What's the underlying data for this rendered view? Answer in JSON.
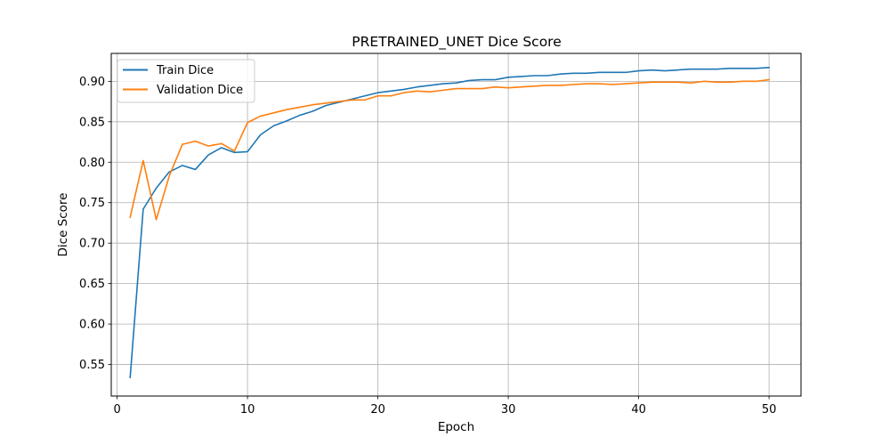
{
  "chart_data": {
    "type": "line",
    "title": "PRETRAINED_UNET Dice Score",
    "xlabel": "Epoch",
    "ylabel": "Dice Score",
    "xlim": [
      -0.45,
      52.45
    ],
    "ylim": [
      0.511,
      0.9345
    ],
    "xticks": [
      0,
      10,
      20,
      30,
      40,
      50
    ],
    "yticks": [
      0.55,
      0.6,
      0.65,
      0.7,
      0.75,
      0.8,
      0.85,
      0.9
    ],
    "xtick_labels": [
      "0",
      "10",
      "20",
      "30",
      "40",
      "50"
    ],
    "ytick_labels": [
      "0.55",
      "0.60",
      "0.65",
      "0.70",
      "0.75",
      "0.80",
      "0.85",
      "0.90"
    ],
    "grid": true,
    "legend_position": "top-left",
    "x": [
      1,
      2,
      3,
      4,
      5,
      6,
      7,
      8,
      9,
      10,
      11,
      12,
      13,
      14,
      15,
      16,
      17,
      18,
      19,
      20,
      21,
      22,
      23,
      24,
      25,
      26,
      27,
      28,
      29,
      30,
      31,
      32,
      33,
      34,
      35,
      36,
      37,
      38,
      39,
      40,
      41,
      42,
      43,
      44,
      45,
      46,
      47,
      48,
      49,
      50
    ],
    "series": [
      {
        "name": "Train Dice",
        "color": "#1f77b4",
        "values": [
          0.534,
          0.742,
          0.768,
          0.788,
          0.796,
          0.791,
          0.809,
          0.818,
          0.812,
          0.813,
          0.834,
          0.845,
          0.851,
          0.858,
          0.863,
          0.87,
          0.874,
          0.878,
          0.882,
          0.886,
          0.888,
          0.89,
          0.893,
          0.895,
          0.897,
          0.898,
          0.901,
          0.902,
          0.902,
          0.905,
          0.906,
          0.907,
          0.907,
          0.909,
          0.91,
          0.91,
          0.911,
          0.911,
          0.911,
          0.913,
          0.914,
          0.913,
          0.914,
          0.915,
          0.915,
          0.915,
          0.916,
          0.916,
          0.916,
          0.917
        ]
      },
      {
        "name": "Validation Dice",
        "color": "#ff7f0e",
        "values": [
          0.732,
          0.802,
          0.729,
          0.783,
          0.822,
          0.826,
          0.82,
          0.823,
          0.814,
          0.849,
          0.857,
          0.861,
          0.865,
          0.868,
          0.871,
          0.873,
          0.875,
          0.877,
          0.877,
          0.882,
          0.882,
          0.886,
          0.888,
          0.887,
          0.889,
          0.891,
          0.891,
          0.891,
          0.893,
          0.892,
          0.893,
          0.894,
          0.895,
          0.895,
          0.896,
          0.897,
          0.897,
          0.896,
          0.897,
          0.898,
          0.899,
          0.899,
          0.899,
          0.898,
          0.9,
          0.899,
          0.899,
          0.9,
          0.9,
          0.902
        ]
      }
    ]
  }
}
